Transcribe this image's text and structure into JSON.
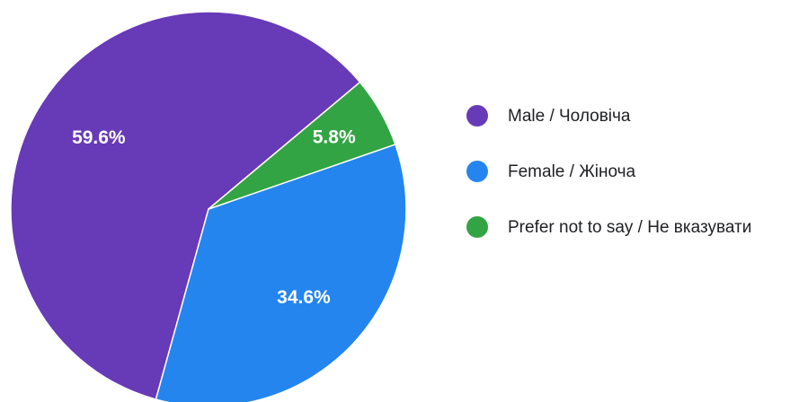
{
  "chart_data": {
    "type": "pie",
    "categories": [
      "Male / Чоловіча",
      "Female / Жіноча",
      "Prefer not to say / Не вказувати"
    ],
    "values": [
      59.6,
      34.6,
      5.8
    ],
    "value_labels": [
      "59.6%",
      "34.6%",
      "5.8%"
    ],
    "colors": [
      "#673ab7",
      "#2585ef",
      "#33a443"
    ],
    "legend": "right"
  }
}
